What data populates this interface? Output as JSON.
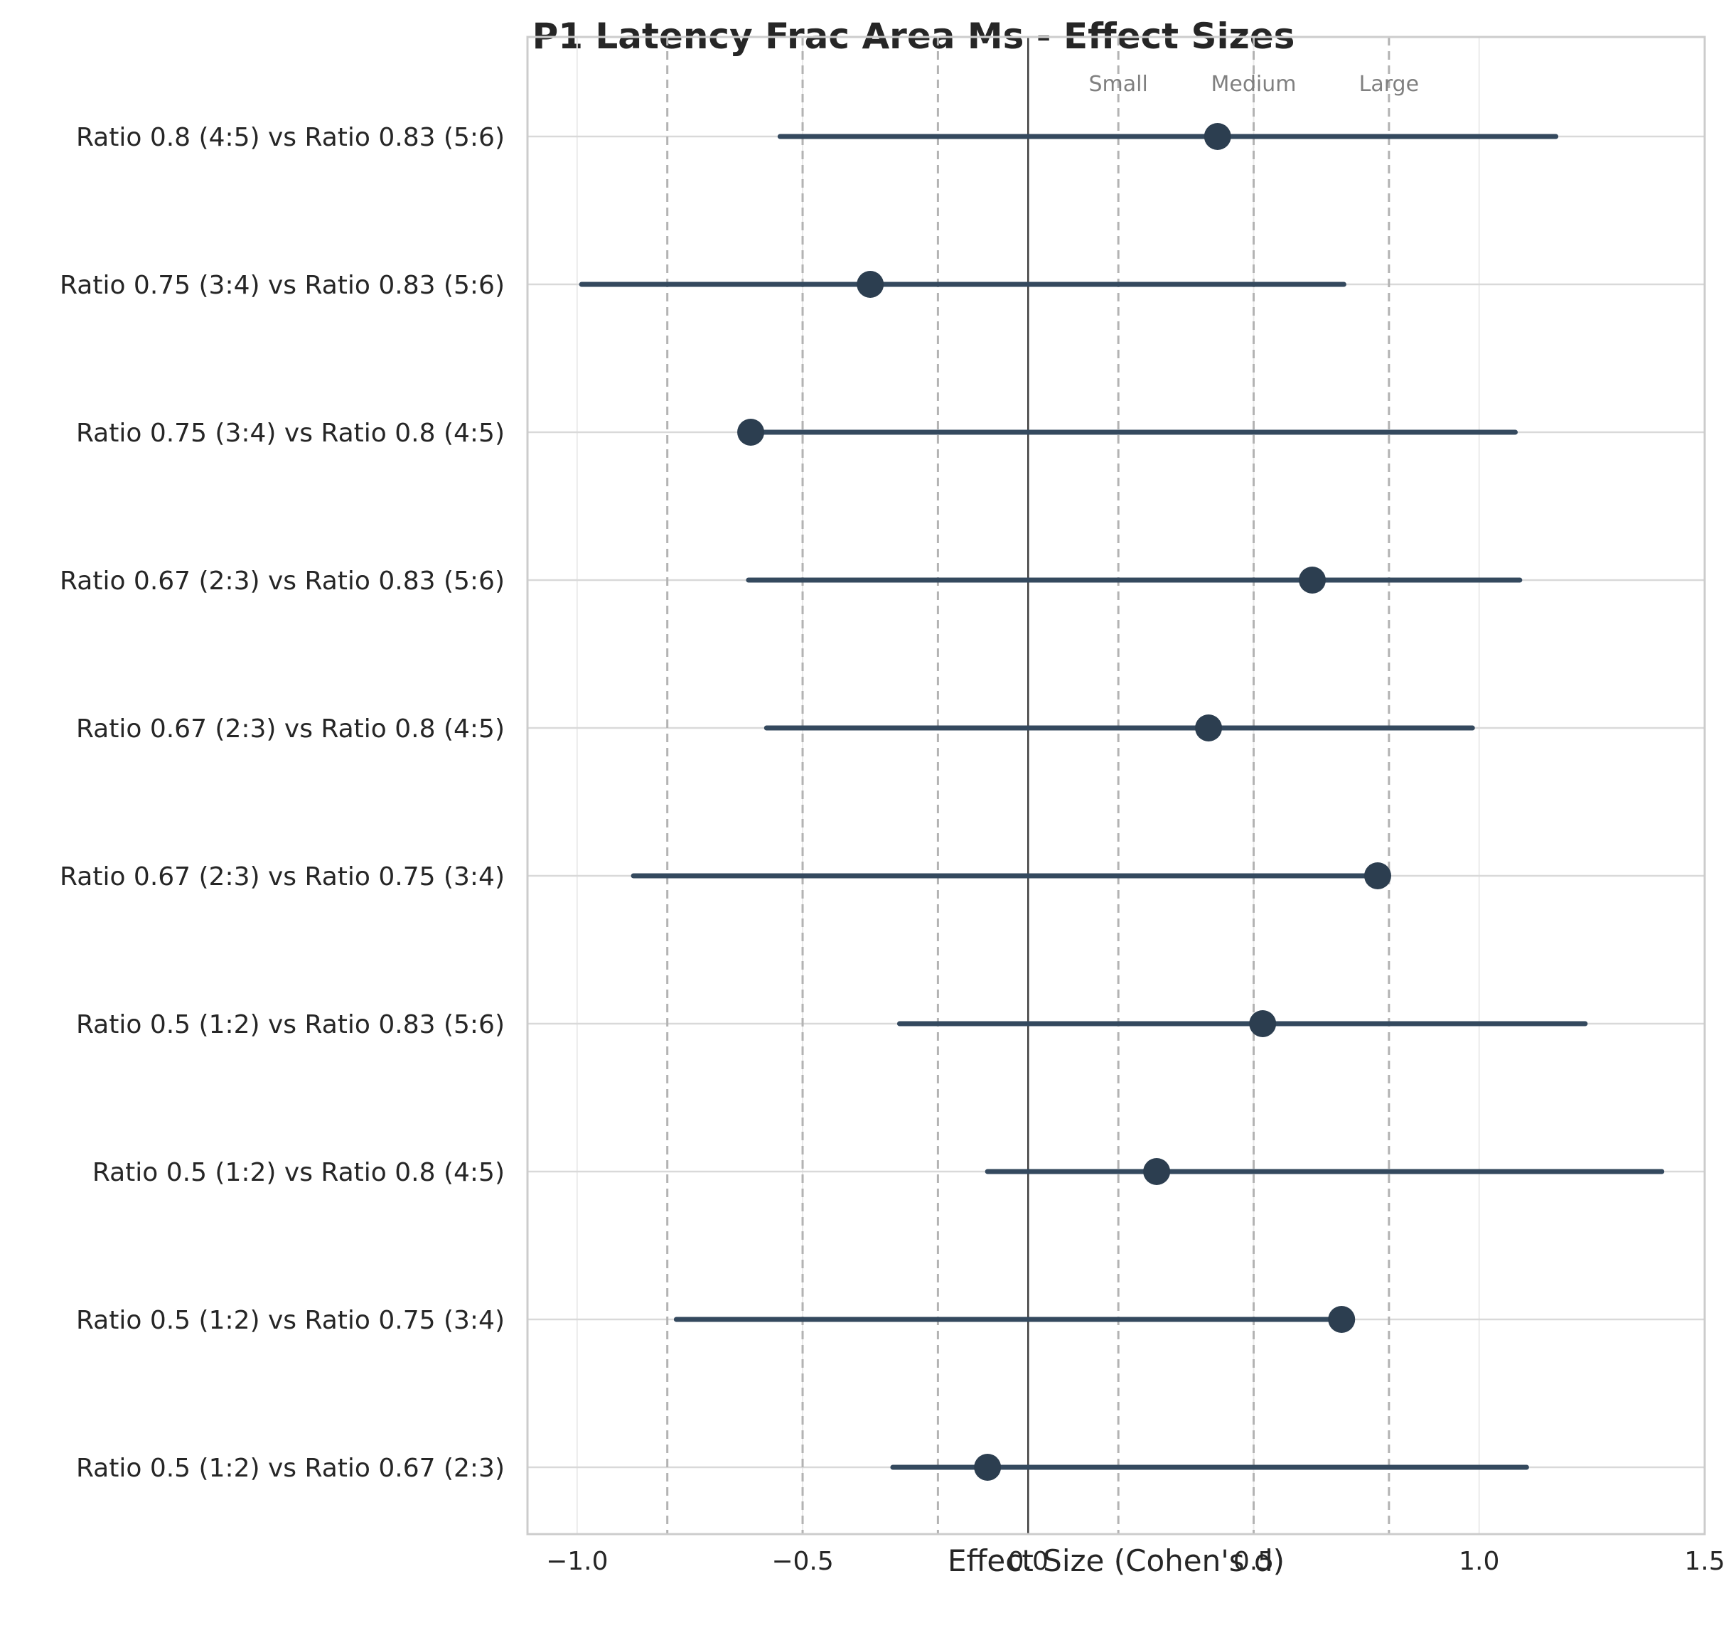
{
  "chart_data": {
    "type": "forest",
    "title": "P1 Latency Frac Area Ms - Effect Sizes",
    "xlabel": "Effect Size (Cohen's d)",
    "ylabel": "",
    "xlim": [
      -1.11,
      1.5
    ],
    "xticks": [
      -1.0,
      -0.5,
      0.0,
      0.5,
      1.0,
      1.5
    ],
    "xtick_labels": [
      "−1.0",
      "−0.5",
      "0.0",
      "0.5",
      "1.0",
      "1.5"
    ],
    "grid": true,
    "reference_lines": [
      {
        "value": -0.8,
        "style": "dashed"
      },
      {
        "value": -0.5,
        "style": "dashed"
      },
      {
        "value": -0.2,
        "style": "dashed"
      },
      {
        "value": 0.0,
        "style": "solid"
      },
      {
        "value": 0.2,
        "style": "dashed",
        "label": "Small"
      },
      {
        "value": 0.5,
        "style": "dashed",
        "label": "Medium"
      },
      {
        "value": 0.8,
        "style": "dashed",
        "label": "Large"
      }
    ],
    "colors": {
      "marker": "#2c3e50",
      "ci": "#34495e",
      "grid": "#d9d9d9",
      "ref": "#b3b3b3",
      "zero": "#404040",
      "axis_text": "#262626",
      "annot": "#808080"
    },
    "rows": [
      {
        "label": "Ratio 0.8 (4:5) vs Ratio 0.83 (5:6)",
        "d": 0.42,
        "ci_low": -0.55,
        "ci_high": 1.17
      },
      {
        "label": "Ratio 0.75 (3:4) vs Ratio 0.83 (5:6)",
        "d": -0.35,
        "ci_low": -0.99,
        "ci_high": 0.7
      },
      {
        "label": "Ratio 0.75 (3:4) vs Ratio 0.8 (4:5)",
        "d": -0.615,
        "ci_low": -0.615,
        "ci_high": 1.08
      },
      {
        "label": "Ratio 0.67 (2:3) vs Ratio 0.83 (5:6)",
        "d": 0.63,
        "ci_low": -0.62,
        "ci_high": 1.09
      },
      {
        "label": "Ratio 0.67 (2:3) vs Ratio 0.8 (4:5)",
        "d": 0.4,
        "ci_low": -0.58,
        "ci_high": 0.985
      },
      {
        "label": "Ratio 0.67 (2:3) vs Ratio 0.75 (3:4)",
        "d": 0.775,
        "ci_low": -0.875,
        "ci_high": 0.775
      },
      {
        "label": "Ratio 0.5 (1:2) vs Ratio 0.83 (5:6)",
        "d": 0.52,
        "ci_low": -0.285,
        "ci_high": 1.235
      },
      {
        "label": "Ratio 0.5 (1:2) vs Ratio 0.8 (4:5)",
        "d": 0.285,
        "ci_low": -0.09,
        "ci_high": 1.405
      },
      {
        "label": "Ratio 0.5 (1:2) vs Ratio 0.75 (3:4)",
        "d": 0.695,
        "ci_low": -0.78,
        "ci_high": 0.695
      },
      {
        "label": "Ratio 0.5 (1:2) vs Ratio 0.67 (2:3)",
        "d": -0.09,
        "ci_low": -0.3,
        "ci_high": 1.105
      }
    ]
  }
}
